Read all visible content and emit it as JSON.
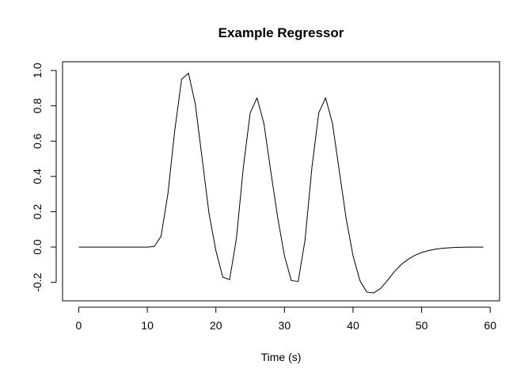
{
  "chart_data": {
    "type": "line",
    "title": "Example Regressor",
    "xlabel": "Time (s)",
    "ylabel": "",
    "xlim": [
      -2.36,
      61.36
    ],
    "ylim": [
      -0.3046,
      1.0496
    ],
    "xticks": [
      0,
      10,
      20,
      30,
      40,
      50,
      60
    ],
    "yticks": [
      -0.2,
      0.0,
      0.2,
      0.4,
      0.6,
      0.8,
      1.0
    ],
    "xtick_labels": [
      "0",
      "10",
      "20",
      "30",
      "40",
      "50",
      "60"
    ],
    "ytick_labels": [
      "-0.2",
      "0.0",
      "0.2",
      "0.4",
      "0.6",
      "0.8",
      "1.0"
    ],
    "grid": false,
    "legend": "none",
    "line_color": "#000000",
    "series": [
      {
        "x": [
          0,
          1,
          2,
          3,
          4,
          5,
          6,
          7,
          8,
          9,
          10,
          11,
          12,
          13,
          14,
          15,
          16,
          17,
          18,
          19,
          20,
          21,
          22,
          23,
          24,
          25,
          26,
          27,
          28,
          29,
          30,
          31,
          32,
          33,
          34,
          35,
          36,
          37,
          38,
          39,
          40,
          41,
          42,
          43,
          44,
          45,
          46,
          47,
          48,
          49,
          50,
          51,
          52,
          53,
          54,
          55,
          56,
          57,
          58,
          59
        ],
        "y": [
          0,
          0,
          0,
          0,
          0,
          0,
          0,
          0,
          0,
          0,
          0,
          0.003,
          0.06,
          0.3,
          0.66,
          0.95,
          0.985,
          0.81,
          0.5,
          0.19,
          -0.02,
          -0.17,
          -0.185,
          0.05,
          0.45,
          0.76,
          0.845,
          0.7,
          0.43,
          0.17,
          -0.05,
          -0.19,
          -0.195,
          0.04,
          0.45,
          0.76,
          0.845,
          0.7,
          0.43,
          0.16,
          -0.05,
          -0.19,
          -0.255,
          -0.26,
          -0.235,
          -0.19,
          -0.14,
          -0.1,
          -0.07,
          -0.047,
          -0.031,
          -0.02,
          -0.012,
          -0.007,
          -0.004,
          -0.002,
          -0.001,
          -0.0005,
          -0.0002,
          0
        ]
      }
    ]
  }
}
